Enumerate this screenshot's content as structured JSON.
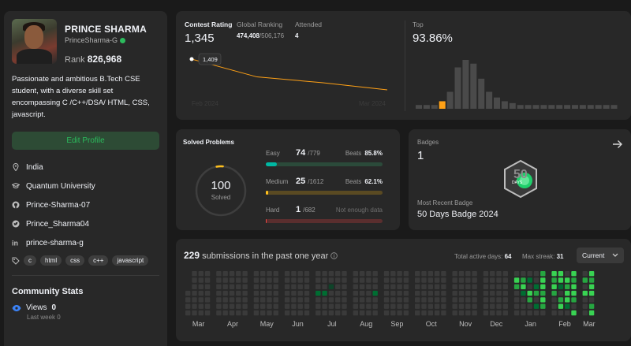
{
  "profile": {
    "name": "PRINCE SHARMA",
    "username": "PrinceSharma-G",
    "rank_label": "Rank",
    "rank_value": "826,968",
    "bio": "Passionate and ambitious B.Tech CSE student, with a diverse skill set encompassing C /C++/DSA/ HTML, CSS, javascript.",
    "edit_button": "Edit Profile",
    "location": "India",
    "university": "Quantum University",
    "github": "Prince-Sharma-07",
    "twitter": "Prince_Sharma04",
    "linkedin": "prince-sharma-g",
    "skills": [
      "c",
      "html",
      "css",
      "c++",
      "javascript"
    ]
  },
  "community": {
    "title": "Community Stats",
    "views_label": "Views",
    "views_value": "0",
    "last_week_label": "Last week",
    "last_week_value": "0"
  },
  "contest": {
    "rating_label": "Contest Rating",
    "rating_value": "1,345",
    "global_label": "Global Ranking",
    "global_value": "474,408",
    "global_total": "/506,176",
    "attended_label": "Attended",
    "attended_value": "4",
    "tooltip": "1,409",
    "start_label": "Feb 2024",
    "end_label": "Mar 2024",
    "rating_series": [
      1409,
      1372,
      1360,
      1345
    ],
    "top_label": "Top",
    "top_value": "93.86%",
    "histogram": [
      2,
      2,
      2,
      4,
      9,
      22,
      26,
      24,
      16,
      9,
      6,
      4,
      3,
      2,
      2,
      2,
      2,
      2,
      2,
      2,
      2,
      2,
      2,
      2,
      2,
      2
    ],
    "highlight_index": 3,
    "colors": {
      "line": "#ffa116",
      "bar": "#4a4a4a",
      "highlight": "#ffa116"
    }
  },
  "solved": {
    "title": "Solved Problems",
    "total": "100",
    "total_label": "Solved",
    "easy_label": "Easy",
    "easy_value": "74",
    "easy_total": "/779",
    "easy_beats_label": "Beats",
    "easy_beats": "85.8%",
    "easy_fraction": 0.095,
    "medium_label": "Medium",
    "medium_value": "25",
    "medium_total": "/1612",
    "medium_beats_label": "Beats",
    "medium_beats": "62.1%",
    "medium_fraction": 0.016,
    "hard_label": "Hard",
    "hard_value": "1",
    "hard_total": "/682",
    "hard_note": "Not enough data",
    "hard_fraction": 0.0015,
    "colors": {
      "easy": "#00b8a3",
      "easy_track": "#2b4a3a",
      "medium": "#ffc01e",
      "medium_track": "#5a4a22",
      "hard": "#ef4743",
      "hard_track": "#5a2e2e",
      "ring": "#3e3e3e"
    }
  },
  "badges": {
    "label": "Badges",
    "count": "1",
    "recent_label": "Most Recent Badge",
    "recent_name": "50 Days Badge 2024",
    "badge_text": "DAYS",
    "badge_number": "50"
  },
  "submissions": {
    "count": "229",
    "text": "submissions in the past one year",
    "active_label": "Total active days:",
    "active_value": "64",
    "streak_label": "Max streak:",
    "streak_value": "31",
    "select_value": "Current",
    "months": [
      "Mar",
      "Apr",
      "May",
      "Jun",
      "Jul",
      "Aug",
      "Sep",
      "Oct",
      "Nov",
      "Dec",
      "Jan",
      "Feb",
      "Mar"
    ],
    "month_weeks": [
      4,
      5,
      4,
      4,
      5,
      4,
      4,
      5,
      4,
      4,
      5,
      4,
      2
    ],
    "colors": {
      "empty": "#3a3a3a",
      "l1": "#0e4429",
      "l2": "#006d32",
      "l3": "#26a641",
      "l4": "#39d353"
    }
  }
}
